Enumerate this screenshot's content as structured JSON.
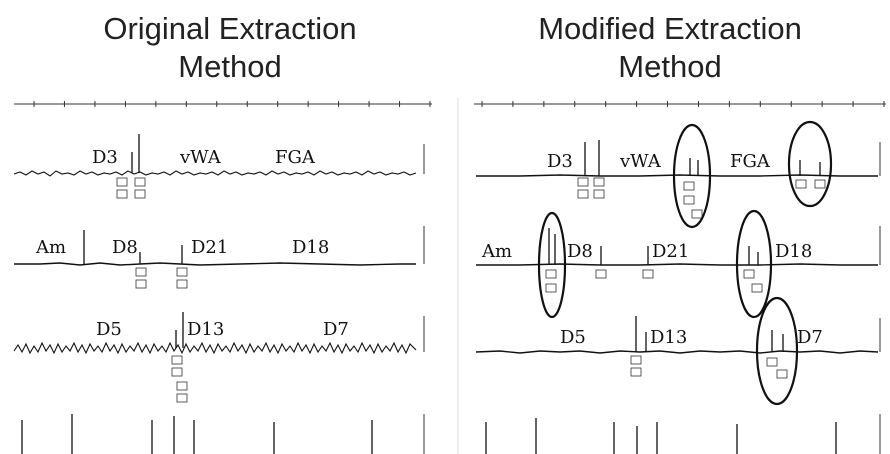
{
  "panels": {
    "left": {
      "title_line1": "Original Extraction",
      "title_line2": "Method",
      "rows": [
        {
          "loci": [
            "D3",
            "vWA",
            "FGA"
          ]
        },
        {
          "loci": [
            "Am",
            "D8",
            "D21",
            "D18"
          ]
        },
        {
          "loci": [
            "D5",
            "D13",
            "D7"
          ]
        }
      ]
    },
    "right": {
      "title_line1": "Modified Extraction",
      "title_line2": "Method",
      "rows": [
        {
          "loci": [
            "D3",
            "vWA",
            "FGA"
          ]
        },
        {
          "loci": [
            "Am",
            "D8",
            "D21",
            "D18"
          ]
        },
        {
          "loci": [
            "D5",
            "D13",
            "D7"
          ]
        }
      ],
      "highlighted_loci": [
        "vWA",
        "FGA",
        "Am",
        "D18",
        "D7"
      ]
    }
  }
}
